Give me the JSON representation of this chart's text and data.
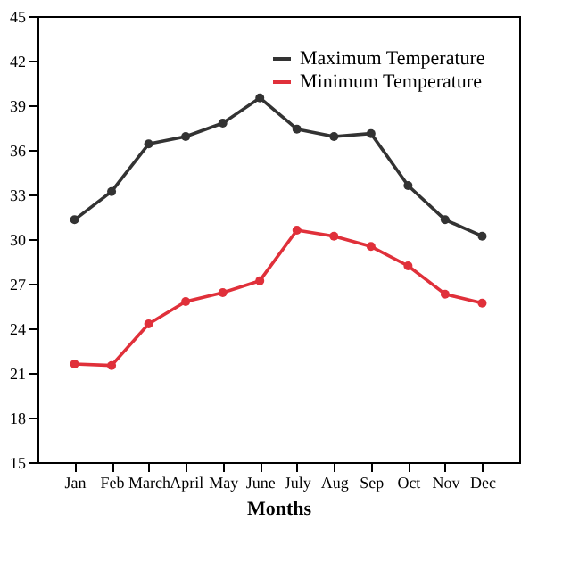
{
  "chart_data": {
    "type": "line",
    "xlabel": "Months",
    "categories": [
      "Jan",
      "Feb",
      "March",
      "April",
      "May",
      "June",
      "July",
      "Aug",
      "Sep",
      "Oct",
      "Nov",
      "Dec"
    ],
    "series": [
      {
        "name": "Maximum Temperature",
        "color": "#333333",
        "values": [
          31.3,
          33.2,
          36.4,
          36.9,
          37.8,
          39.5,
          37.4,
          36.9,
          37.1,
          33.6,
          31.3,
          30.2
        ]
      },
      {
        "name": "Minimum Temperature",
        "color": "#e0303a",
        "values": [
          21.6,
          21.5,
          24.3,
          25.8,
          26.4,
          27.2,
          30.6,
          30.2,
          29.5,
          28.2,
          26.3,
          25.7
        ]
      }
    ],
    "ylim": [
      15,
      45
    ],
    "yticks": [
      15,
      18,
      21,
      24,
      27,
      30,
      33,
      36,
      39,
      42,
      45
    ],
    "grid": false,
    "legend": "top right",
    "marker": "circle",
    "line_style": "solid"
  }
}
